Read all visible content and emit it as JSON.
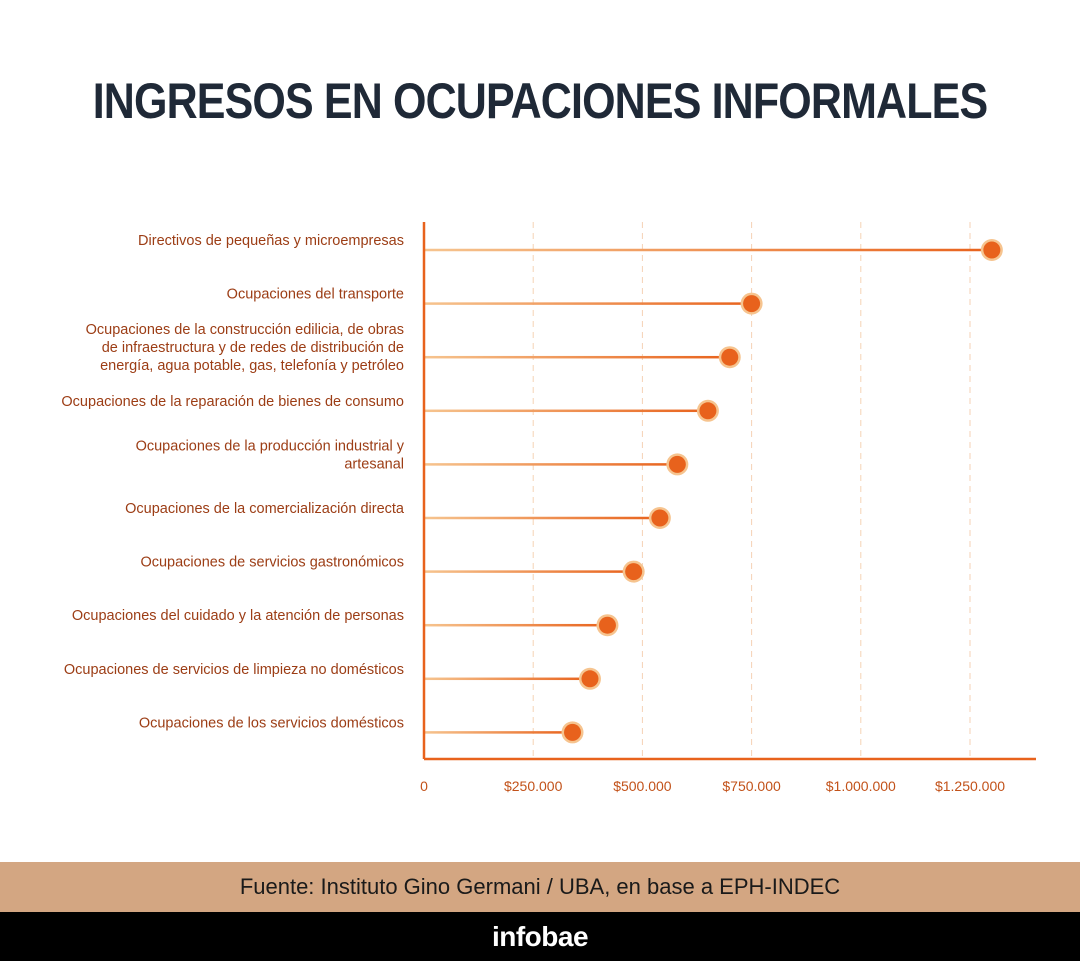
{
  "title": "INGRESOS EN OCUPACIONES INFORMALES",
  "source": "Fuente: Instituto Gino Germani / UBA, en base a EPH-INDEC",
  "brand": "infobae",
  "colors": {
    "accent": "#e8621c",
    "line_start": "#f6c48f",
    "grid": "#f5d2b5",
    "label": "#9c3d15",
    "tick": "#c2521a",
    "footer": "#d3a682"
  },
  "chart_data": {
    "type": "lollipop",
    "orientation": "horizontal",
    "categories": [
      [
        "Directivos de pequeñas y microempresas"
      ],
      [
        "Ocupaciones del transporte"
      ],
      [
        "Ocupaciones de la construcción edilicia, de obras",
        "de infraestructura y de redes de distribución de",
        "energía, agua potable, gas, telefonía y petróleo"
      ],
      [
        "Ocupaciones de la reparación de bienes de consumo"
      ],
      [
        "Ocupaciones de la producción industrial y",
        "artesanal"
      ],
      [
        "Ocupaciones de la comercialización directa"
      ],
      [
        "Ocupaciones de servicios gastronómicos"
      ],
      [
        "Ocupaciones del cuidado y la atención de personas"
      ],
      [
        "Ocupaciones de servicios de limpieza no domésticos"
      ],
      [
        "Ocupaciones de los servicios domésticos"
      ]
    ],
    "values": [
      1300000,
      750000,
      700000,
      650000,
      580000,
      540000,
      480000,
      420000,
      380000,
      340000
    ],
    "xlim": [
      0,
      1400000
    ],
    "xticks": [
      0,
      250000,
      500000,
      750000,
      1000000,
      1250000
    ],
    "xtick_labels": [
      "0",
      "$250.000",
      "$500.000",
      "$750.000",
      "$1.000.000",
      "$1.250.000"
    ],
    "grid": "vertical dashed"
  }
}
